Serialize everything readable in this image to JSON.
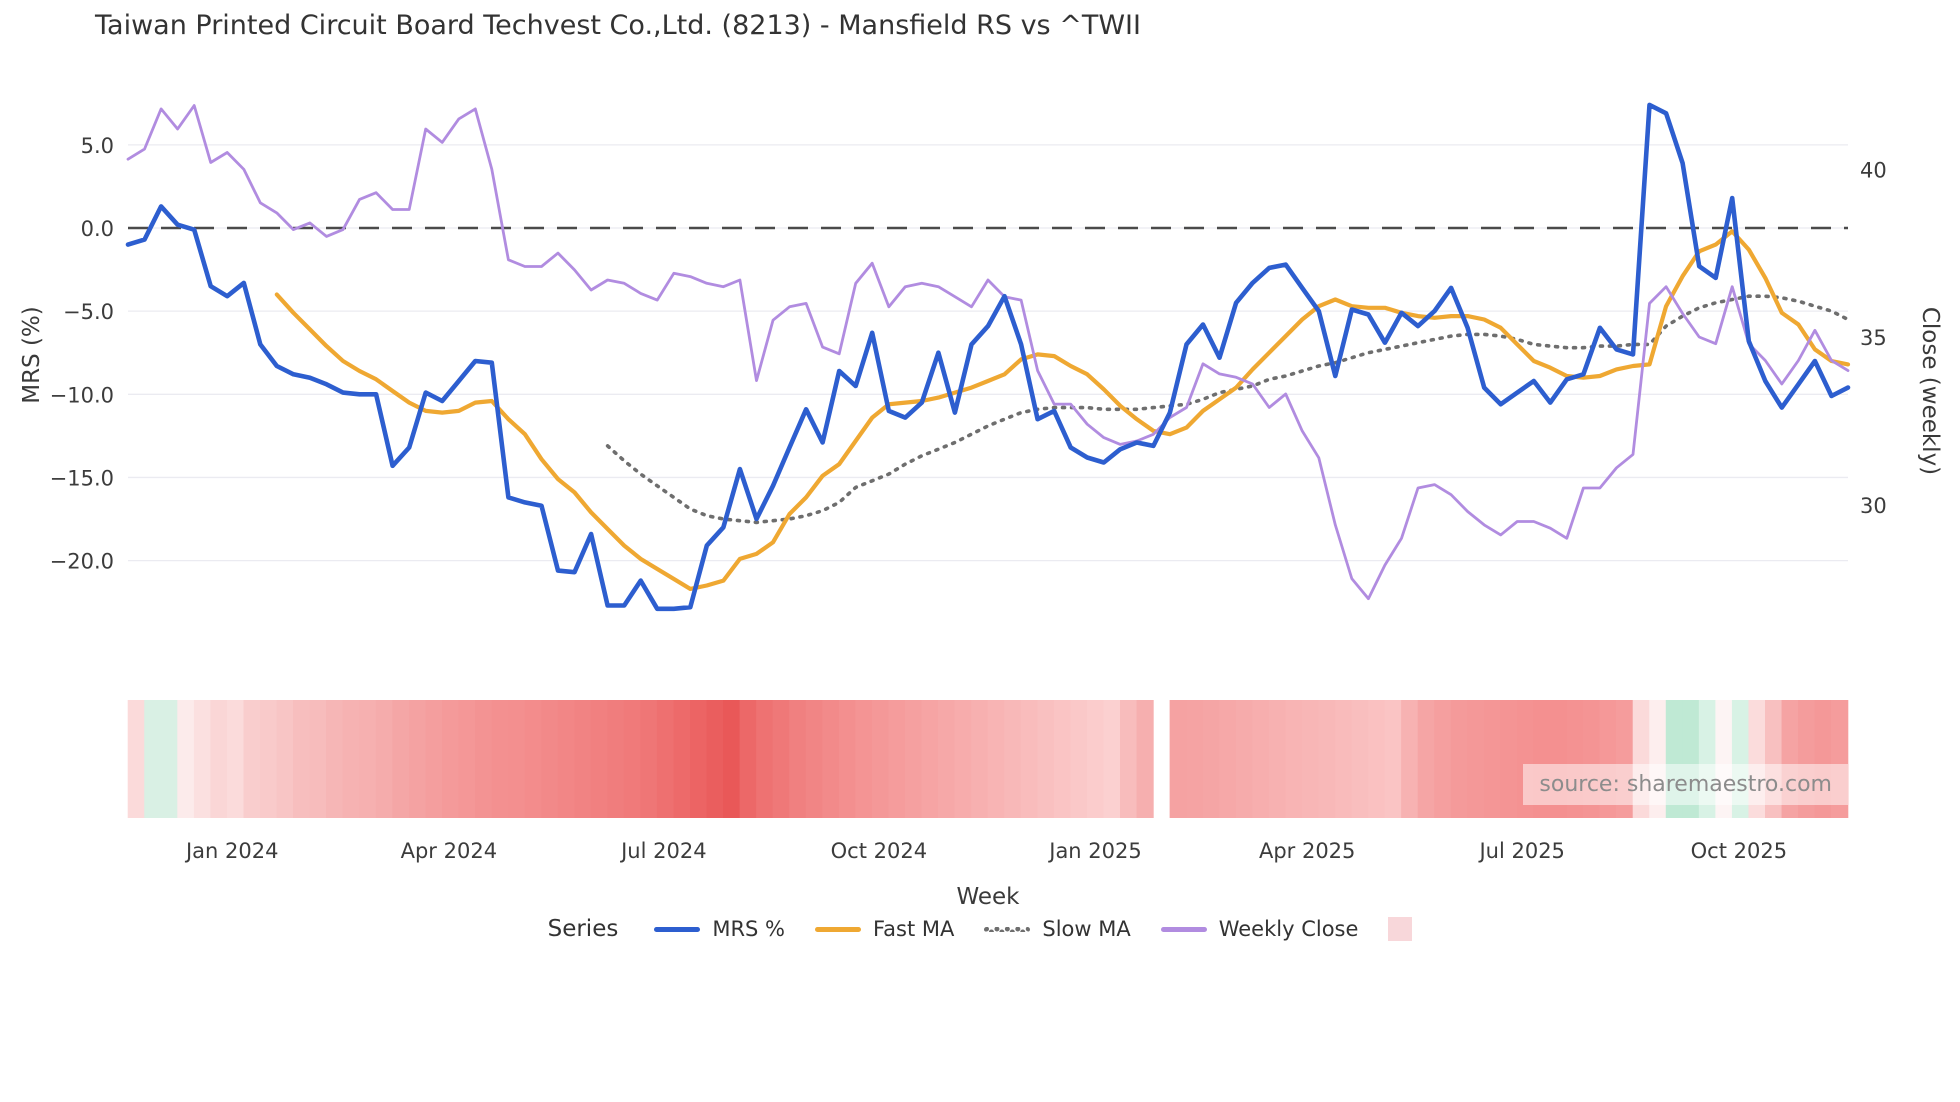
{
  "title": "Taiwan Printed Circuit Board Techvest Co.,Ltd. (8213) - Mansfield RS vs ^TWII",
  "source_note": "source: sharemaestro.com",
  "x_axis_title": "Week",
  "legend": {
    "title": "Series",
    "items": [
      {
        "label": "MRS %",
        "color": "#2d5ecf",
        "style": "solid"
      },
      {
        "label": "Fast MA",
        "color": "#efa832",
        "style": "solid"
      },
      {
        "label": "Slow MA",
        "color": "#6e6e6e",
        "style": "dotted"
      },
      {
        "label": "Weekly Close",
        "color": "#b18ce0",
        "style": "solid"
      },
      {
        "label": "",
        "color": "#f8d7da",
        "style": "swatch"
      }
    ]
  },
  "chart_data": {
    "type": "line",
    "title": "Taiwan Printed Circuit Board Techvest Co.,Ltd. (8213) - Mansfield RS vs ^TWII",
    "x_unit": "week_index",
    "x_range": [
      0,
      104
    ],
    "grid": "horizontal",
    "zero_line_dashed": true,
    "left_axis": {
      "label": "MRS (%)",
      "ticks": [
        {
          "label": "5.0",
          "value": 5
        },
        {
          "label": "0.0",
          "value": 0
        },
        {
          "label": "−5.0",
          "value": -5
        },
        {
          "label": "−10.0",
          "value": -10
        },
        {
          "label": "−15.0",
          "value": -15
        },
        {
          "label": "−20.0",
          "value": -20
        }
      ]
    },
    "right_axis": {
      "label": "Close (weekly)",
      "ticks": [
        {
          "label": "40",
          "value": 40
        },
        {
          "label": "35",
          "value": 35
        },
        {
          "label": "30",
          "value": 30
        }
      ]
    },
    "x_ticks": [
      {
        "label": "Jan 2024",
        "week": 6.3
      },
      {
        "label": "Apr 2024",
        "week": 19.4
      },
      {
        "label": "Jul 2024",
        "week": 32.4
      },
      {
        "label": "Oct 2024",
        "week": 45.4
      },
      {
        "label": "Jan 2025",
        "week": 58.5
      },
      {
        "label": "Apr 2025",
        "week": 71.3
      },
      {
        "label": "Jul 2025",
        "week": 84.3
      },
      {
        "label": "Oct 2025",
        "week": 97.4
      }
    ],
    "series": [
      {
        "name": "Slow MA",
        "axis": "left",
        "color": "#6e6e6e",
        "style": "dotted",
        "width": 3.6,
        "values": [
          null,
          null,
          null,
          null,
          null,
          null,
          null,
          null,
          null,
          null,
          null,
          null,
          null,
          null,
          null,
          null,
          null,
          null,
          null,
          null,
          null,
          null,
          null,
          null,
          null,
          null,
          null,
          null,
          null,
          -13.1,
          -14.0,
          -14.8,
          -15.5,
          -16.2,
          -16.9,
          -17.3,
          -17.5,
          -17.6,
          -17.7,
          -17.6,
          -17.5,
          -17.3,
          -17.0,
          -16.5,
          -15.6,
          -15.2,
          -14.8,
          -14.2,
          -13.7,
          -13.3,
          -12.9,
          -12.4,
          -11.9,
          -11.5,
          -11.1,
          -10.9,
          -10.8,
          -10.8,
          -10.8,
          -10.9,
          -10.9,
          -10.9,
          -10.8,
          -10.7,
          -10.6,
          -10.3,
          -9.9,
          -9.7,
          -9.5,
          -9.1,
          -8.9,
          -8.6,
          -8.3,
          -8.1,
          -7.8,
          -7.5,
          -7.3,
          -7.1,
          -6.9,
          -6.7,
          -6.5,
          -6.4,
          -6.4,
          -6.5,
          -6.7,
          -7.0,
          -7.1,
          -7.2,
          -7.2,
          -7.1,
          -7.1,
          -7.0,
          -7.0,
          -5.9,
          -5.3,
          -4.8,
          -4.5,
          -4.3,
          -4.1,
          -4.1,
          -4.2,
          -4.4,
          -4.7,
          -5.0,
          -5.5
        ]
      },
      {
        "name": "Fast MA",
        "axis": "left",
        "color": "#efa832",
        "style": "solid",
        "width": 4.2,
        "values": [
          null,
          null,
          null,
          null,
          null,
          null,
          null,
          null,
          null,
          -4.0,
          -5.1,
          -6.1,
          -7.1,
          -8.0,
          -8.6,
          -9.1,
          -9.8,
          -10.5,
          -11.0,
          -11.1,
          -11.0,
          -10.5,
          -10.4,
          -11.5,
          -12.4,
          -13.9,
          -15.1,
          -15.9,
          -17.1,
          -18.1,
          -19.1,
          -19.9,
          -20.5,
          -21.1,
          -21.7,
          -21.5,
          -21.2,
          -19.9,
          -19.6,
          -18.9,
          -17.2,
          -16.2,
          -14.9,
          -14.2,
          -12.8,
          -11.4,
          -10.6,
          -10.5,
          -10.4,
          -10.2,
          -9.9,
          -9.6,
          -9.2,
          -8.8,
          -7.9,
          -7.6,
          -7.7,
          -8.3,
          -8.8,
          -9.7,
          -10.7,
          -11.5,
          -12.2,
          -12.4,
          -12.0,
          -11.0,
          -10.3,
          -9.6,
          -8.5,
          -7.5,
          -6.5,
          -5.5,
          -4.7,
          -4.3,
          -4.7,
          -4.8,
          -4.8,
          -5.1,
          -5.3,
          -5.4,
          -5.3,
          -5.3,
          -5.5,
          -6.0,
          -7.0,
          -8.0,
          -8.4,
          -8.9,
          -9.0,
          -8.9,
          -8.5,
          -8.3,
          -8.2,
          -4.7,
          -2.9,
          -1.4,
          -1.0,
          -0.2,
          -1.3,
          -3.0,
          -5.1,
          -5.8,
          -7.3,
          -8.0,
          -8.2
        ]
      },
      {
        "name": "Weekly Close",
        "axis": "right",
        "color": "#b18ce0",
        "style": "solid",
        "width": 2.8,
        "values": [
          40.3,
          40.6,
          41.8,
          41.2,
          41.9,
          40.2,
          40.5,
          40.0,
          39.0,
          38.7,
          38.2,
          38.4,
          38.0,
          38.2,
          39.1,
          39.3,
          38.8,
          38.8,
          41.2,
          40.8,
          41.5,
          41.8,
          40.0,
          37.3,
          37.1,
          37.1,
          37.5,
          37.0,
          36.4,
          36.7,
          36.6,
          36.3,
          36.1,
          36.9,
          36.8,
          36.6,
          36.5,
          36.7,
          33.7,
          35.5,
          35.9,
          36.0,
          34.7,
          34.5,
          36.6,
          37.2,
          35.9,
          36.5,
          36.6,
          36.5,
          36.2,
          35.9,
          36.7,
          36.2,
          36.1,
          34.0,
          33.0,
          33.0,
          32.4,
          32.0,
          31.8,
          31.9,
          32.1,
          32.6,
          32.9,
          34.2,
          33.9,
          33.8,
          33.6,
          32.9,
          33.3,
          32.2,
          31.4,
          29.4,
          27.8,
          27.2,
          28.2,
          29.0,
          30.5,
          30.6,
          30.3,
          29.8,
          29.4,
          29.1,
          29.5,
          29.5,
          29.3,
          29.0,
          30.5,
          30.5,
          31.1,
          31.5,
          36.0,
          36.5,
          35.7,
          35.0,
          34.8,
          36.5,
          34.8,
          34.3,
          33.6,
          34.3,
          35.2,
          34.3,
          34.0
        ]
      },
      {
        "name": "MRS %",
        "axis": "left",
        "color": "#2d5ecf",
        "style": "solid",
        "width": 4.6,
        "values": [
          -1.0,
          -0.7,
          1.3,
          0.2,
          -0.1,
          -3.5,
          -4.1,
          -3.3,
          -7.0,
          -8.3,
          -8.8,
          -9.0,
          -9.4,
          -9.9,
          -10.0,
          -10.0,
          -14.3,
          -13.2,
          -9.9,
          -10.4,
          -9.2,
          -8.0,
          -8.1,
          -16.2,
          -16.5,
          -16.7,
          -20.6,
          -20.7,
          -18.4,
          -22.7,
          -22.7,
          -21.2,
          -22.9,
          -22.9,
          -22.8,
          -19.1,
          -18.0,
          -14.5,
          -17.5,
          -15.5,
          -13.2,
          -10.9,
          -12.9,
          -8.6,
          -9.5,
          -6.3,
          -11.0,
          -11.4,
          -10.5,
          -7.5,
          -11.1,
          -7.0,
          -5.9,
          -4.1,
          -7.0,
          -11.5,
          -11.0,
          -13.2,
          -13.8,
          -14.1,
          -13.3,
          -12.9,
          -13.1,
          -11.1,
          -7.0,
          -5.8,
          -7.8,
          -4.5,
          -3.3,
          -2.4,
          -2.2,
          -3.6,
          -5.0,
          -8.9,
          -4.9,
          -5.2,
          -6.9,
          -5.1,
          -5.9,
          -5.0,
          -3.6,
          -6.0,
          -9.6,
          -10.6,
          -9.9,
          -9.2,
          -10.5,
          -9.1,
          -8.8,
          -6.0,
          -7.3,
          -7.6,
          7.4,
          6.9,
          3.9,
          -2.3,
          -3.0,
          1.8,
          -6.8,
          -9.2,
          -10.8,
          -9.4,
          -8.0,
          -10.1,
          -9.6
        ]
      }
    ],
    "heatmap_strip": {
      "description": "weekly relative-strength color band, white gap at week 62",
      "colors": [
        "#fbdada",
        "#d9f0e4",
        "#d9f0e4",
        "#fcebeb",
        "#fbe0e0",
        "#fad6d6",
        "#fbdbdb",
        "#f9cdcd",
        "#f9caca",
        "#f8c5c5",
        "#f7bebe",
        "#f7bcbc",
        "#f6b6b6",
        "#f6b2b2",
        "#f6b0b0",
        "#f5acac",
        "#f4a6a6",
        "#f4a2a2",
        "#f49e9e",
        "#f49a9a",
        "#f49797",
        "#f39393",
        "#f39090",
        "#f38f8f",
        "#f38c8c",
        "#f28989",
        "#f28686",
        "#f18383",
        "#f18080",
        "#f07d7d",
        "#f07a7a",
        "#ef7676",
        "#ee7070",
        "#ed6a6a",
        "#ec6464",
        "#ea5e5e",
        "#e95858",
        "#ec6868",
        "#ee7272",
        "#ef7878",
        "#f08080",
        "#f18585",
        "#f28a8a",
        "#f38f8f",
        "#f49494",
        "#f49898",
        "#f59c9c",
        "#f5a0a0",
        "#f6a4a4",
        "#f6a8a8",
        "#f7acac",
        "#f7b0b0",
        "#f8b4b4",
        "#f8b8b8",
        "#f9bcbc",
        "#f9c0c0",
        "#fac4c4",
        "#fac8c8",
        "#fbcccc",
        "#fbd0d0",
        "#f8bcbc",
        "#f6afaf",
        null,
        "#f5a2a2",
        "#f5a3a3",
        "#f5a5a5",
        "#f6a8a8",
        "#f6abab",
        "#f7aeae",
        "#f7b1b1",
        "#f8b4b4",
        "#f8b6b6",
        "#f8b8b8",
        "#f9bbbb",
        "#f9bebe",
        "#fac1c1",
        "#fac4c4",
        "#f7b2b2",
        "#f5a5a5",
        "#f59f9f",
        "#f49a9a",
        "#f49898",
        "#f49696",
        "#f49494",
        "#f49292",
        "#f49090",
        "#f49090",
        "#f49292",
        "#f49494",
        "#f59898",
        "#f59c9c",
        "#fbdada",
        "#fdeeee",
        "#bfe9d4",
        "#bfe9d4",
        "#d8f2e5",
        "#fdf4f4",
        "#d8f2e5",
        "#fbdcdc",
        "#f8c0c0",
        "#f5a3a3",
        "#f49c9c",
        "#f49898",
        "#f59c9c"
      ]
    }
  }
}
